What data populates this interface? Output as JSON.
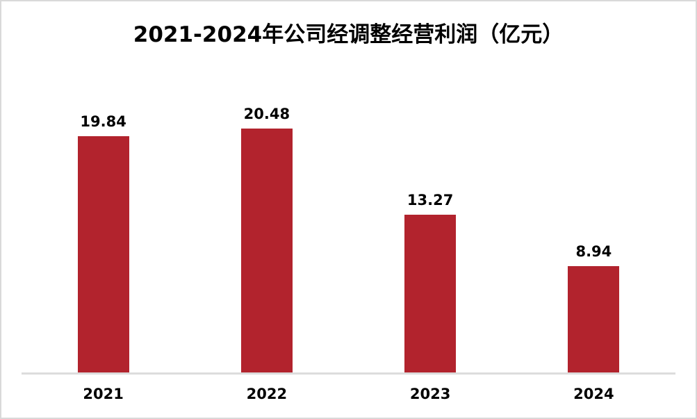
{
  "chart_data": {
    "type": "bar",
    "title": "2021-2024年公司经调整经营利润（亿元）",
    "categories": [
      "2021",
      "2022",
      "2023",
      "2024"
    ],
    "values": [
      19.84,
      20.48,
      13.27,
      8.94
    ],
    "value_labels": [
      "19.84",
      "20.48",
      "13.27",
      "8.94"
    ],
    "xlabel": "",
    "ylabel": "",
    "ylim": [
      0,
      25
    ],
    "grid": false,
    "legend": "none",
    "colors": {
      "bar": "#B2232D",
      "axis_line": "#DCDCDC",
      "text": "#000000",
      "canvas_border": "#D9D9D9",
      "background": "#FFFFFF"
    }
  }
}
